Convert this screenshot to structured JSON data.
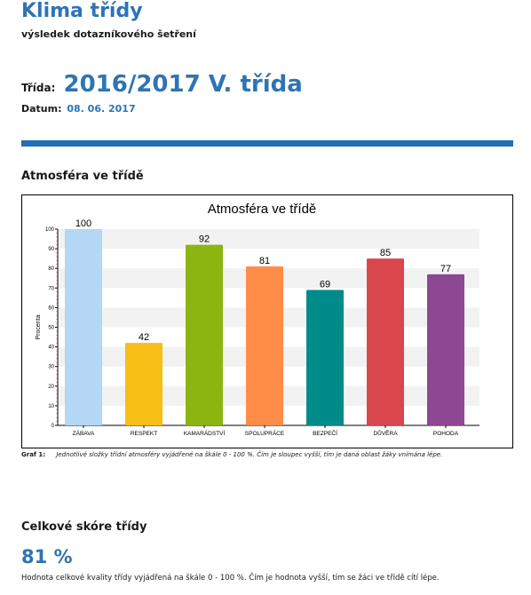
{
  "report": {
    "title": "Klima třídy",
    "subtitle": "výsledek dotazníkového šetření",
    "class_label": "Třída:",
    "class_value": "2016/2017 V. třída",
    "date_label": "Datum:",
    "date_value": "08. 06. 2017"
  },
  "section1": {
    "heading": "Atmosféra ve třídě",
    "caption_label": "Graf 1:",
    "caption_text": "Jednotlivé složky třídní atmosféry vyjádřené na škále 0 - 100 %. Čím je sloupec vyšší, tím je daná oblast žáky vnímána lépe."
  },
  "section2": {
    "heading": "Celkové skóre třídy",
    "score": "81 %",
    "note": "Hodnota celkové kvality třídy vyjádřená na škále 0 - 100 %. Čím je hodnota vyšší, tím se žáci ve třídě cítí lépe."
  },
  "colors": {
    "accent": "#2e74b5",
    "rule": "#1f6fb2"
  },
  "chart_data": {
    "type": "bar",
    "title": "Atmosféra ve třídě",
    "xlabel": "",
    "ylabel": "Procenta",
    "ylim": [
      0,
      100
    ],
    "yticks": [
      "0",
      "10",
      "20",
      "30",
      "40",
      "50",
      "60",
      "70",
      "80",
      "90",
      "100"
    ],
    "grid": true,
    "categories": [
      "ZÁBAVA",
      "RESPEKT",
      "KAMARÁDSTVÍ",
      "SPOLUPRÁCE",
      "BEZPEČÍ",
      "DŮVĚRA",
      "POHODA"
    ],
    "values": [
      100,
      42,
      92,
      81,
      69,
      85,
      77
    ],
    "colors": [
      "#b3d7f5",
      "#f7be16",
      "#8cb512",
      "#ff8c47",
      "#008b8b",
      "#d9474c",
      "#8c4892"
    ]
  }
}
